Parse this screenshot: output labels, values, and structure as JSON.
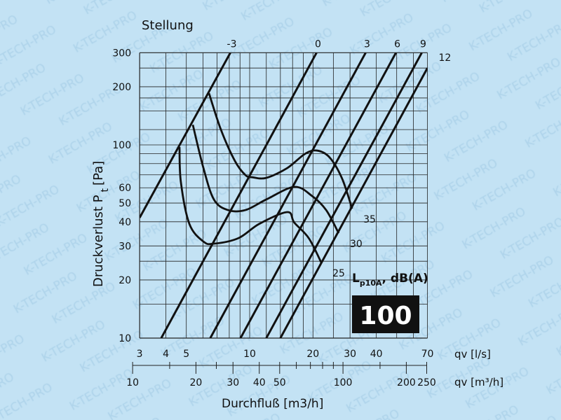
{
  "watermark": "K-TECH-PRO",
  "colors": {
    "background": "#c3e2f4",
    "line": "#111111",
    "badge_bg": "#111111",
    "badge_text": "#ffffff"
  },
  "chart_data": {
    "type": "line",
    "scale": "log-log",
    "grid": true,
    "title": "Stellung",
    "ylabel": "Druckverlust P",
    "ylabel_sub": "t",
    "ylabel_unit": "[Pa]",
    "xlabel": "Durchfluß [m3/h]",
    "x_axis_ls_label": "qv [l/s]",
    "x_axis_m3h_label": "qv [m³/h]",
    "xlim_ls": [
      3,
      70
    ],
    "ylim": [
      10,
      300
    ],
    "x_ticks_ls": [
      "3",
      "4",
      "5",
      "10",
      "20",
      "30",
      "40",
      "70"
    ],
    "x_ticks_m3h": [
      "10",
      "20",
      "30",
      "40",
      "50",
      "100",
      "200",
      "250"
    ],
    "y_ticks": [
      "10",
      "20",
      "30",
      "40",
      "50",
      "60",
      "100",
      "200",
      "300"
    ],
    "stellung_series": [
      {
        "name": "-3",
        "points": [
          [
            3,
            42
          ],
          [
            8.1,
            300
          ]
        ]
      },
      {
        "name": "0",
        "points": [
          [
            3.8,
            10
          ],
          [
            20.8,
            300
          ]
        ]
      },
      {
        "name": "3",
        "points": [
          [
            6.5,
            10
          ],
          [
            35.6,
            300
          ]
        ]
      },
      {
        "name": "6",
        "points": [
          [
            9.05,
            10
          ],
          [
            49.6,
            300
          ]
        ]
      },
      {
        "name": "9",
        "points": [
          [
            12,
            10
          ],
          [
            65.8,
            300
          ]
        ]
      },
      {
        "name": "12",
        "points": [
          [
            14,
            10
          ],
          [
            70,
            250
          ]
        ]
      }
    ],
    "noise_legend": "L",
    "noise_legend_sub": "p10A",
    "noise_legend_unit": ", dB(A)",
    "noise_series": [
      {
        "name": "35",
        "points": [
          [
            6.41,
            185
          ],
          [
            7.3,
            120
          ],
          [
            8.51,
            82.6
          ],
          [
            9.55,
            69.8
          ],
          [
            10.3,
            68
          ],
          [
            12,
            67.5
          ],
          [
            15.1,
            75.9
          ],
          [
            18.3,
            89.8
          ],
          [
            20.9,
            93.5
          ],
          [
            24,
            86.1
          ],
          [
            27.5,
            67
          ],
          [
            30.7,
            46.8
          ]
        ]
      },
      {
        "name": "30",
        "points": [
          [
            5.37,
            127
          ],
          [
            6.03,
            75.9
          ],
          [
            6.76,
            52.2
          ],
          [
            7.88,
            46
          ],
          [
            9.55,
            46
          ],
          [
            12,
            52.2
          ],
          [
            16.3,
            60.6
          ],
          [
            19.8,
            54.4
          ],
          [
            23.1,
            46
          ],
          [
            26.5,
            34.9
          ]
        ]
      },
      {
        "name": "25",
        "points": [
          [
            4.64,
            97.5
          ],
          [
            4.71,
            64.3
          ],
          [
            5.17,
            39
          ],
          [
            6.03,
            31.6
          ],
          [
            6.76,
            30.8
          ],
          [
            8.84,
            32.9
          ],
          [
            11.1,
            39
          ],
          [
            15.1,
            44.9
          ],
          [
            16.3,
            39.6
          ],
          [
            19.1,
            32.9
          ],
          [
            21.9,
            24.6
          ]
        ]
      }
    ],
    "badge": "100"
  }
}
